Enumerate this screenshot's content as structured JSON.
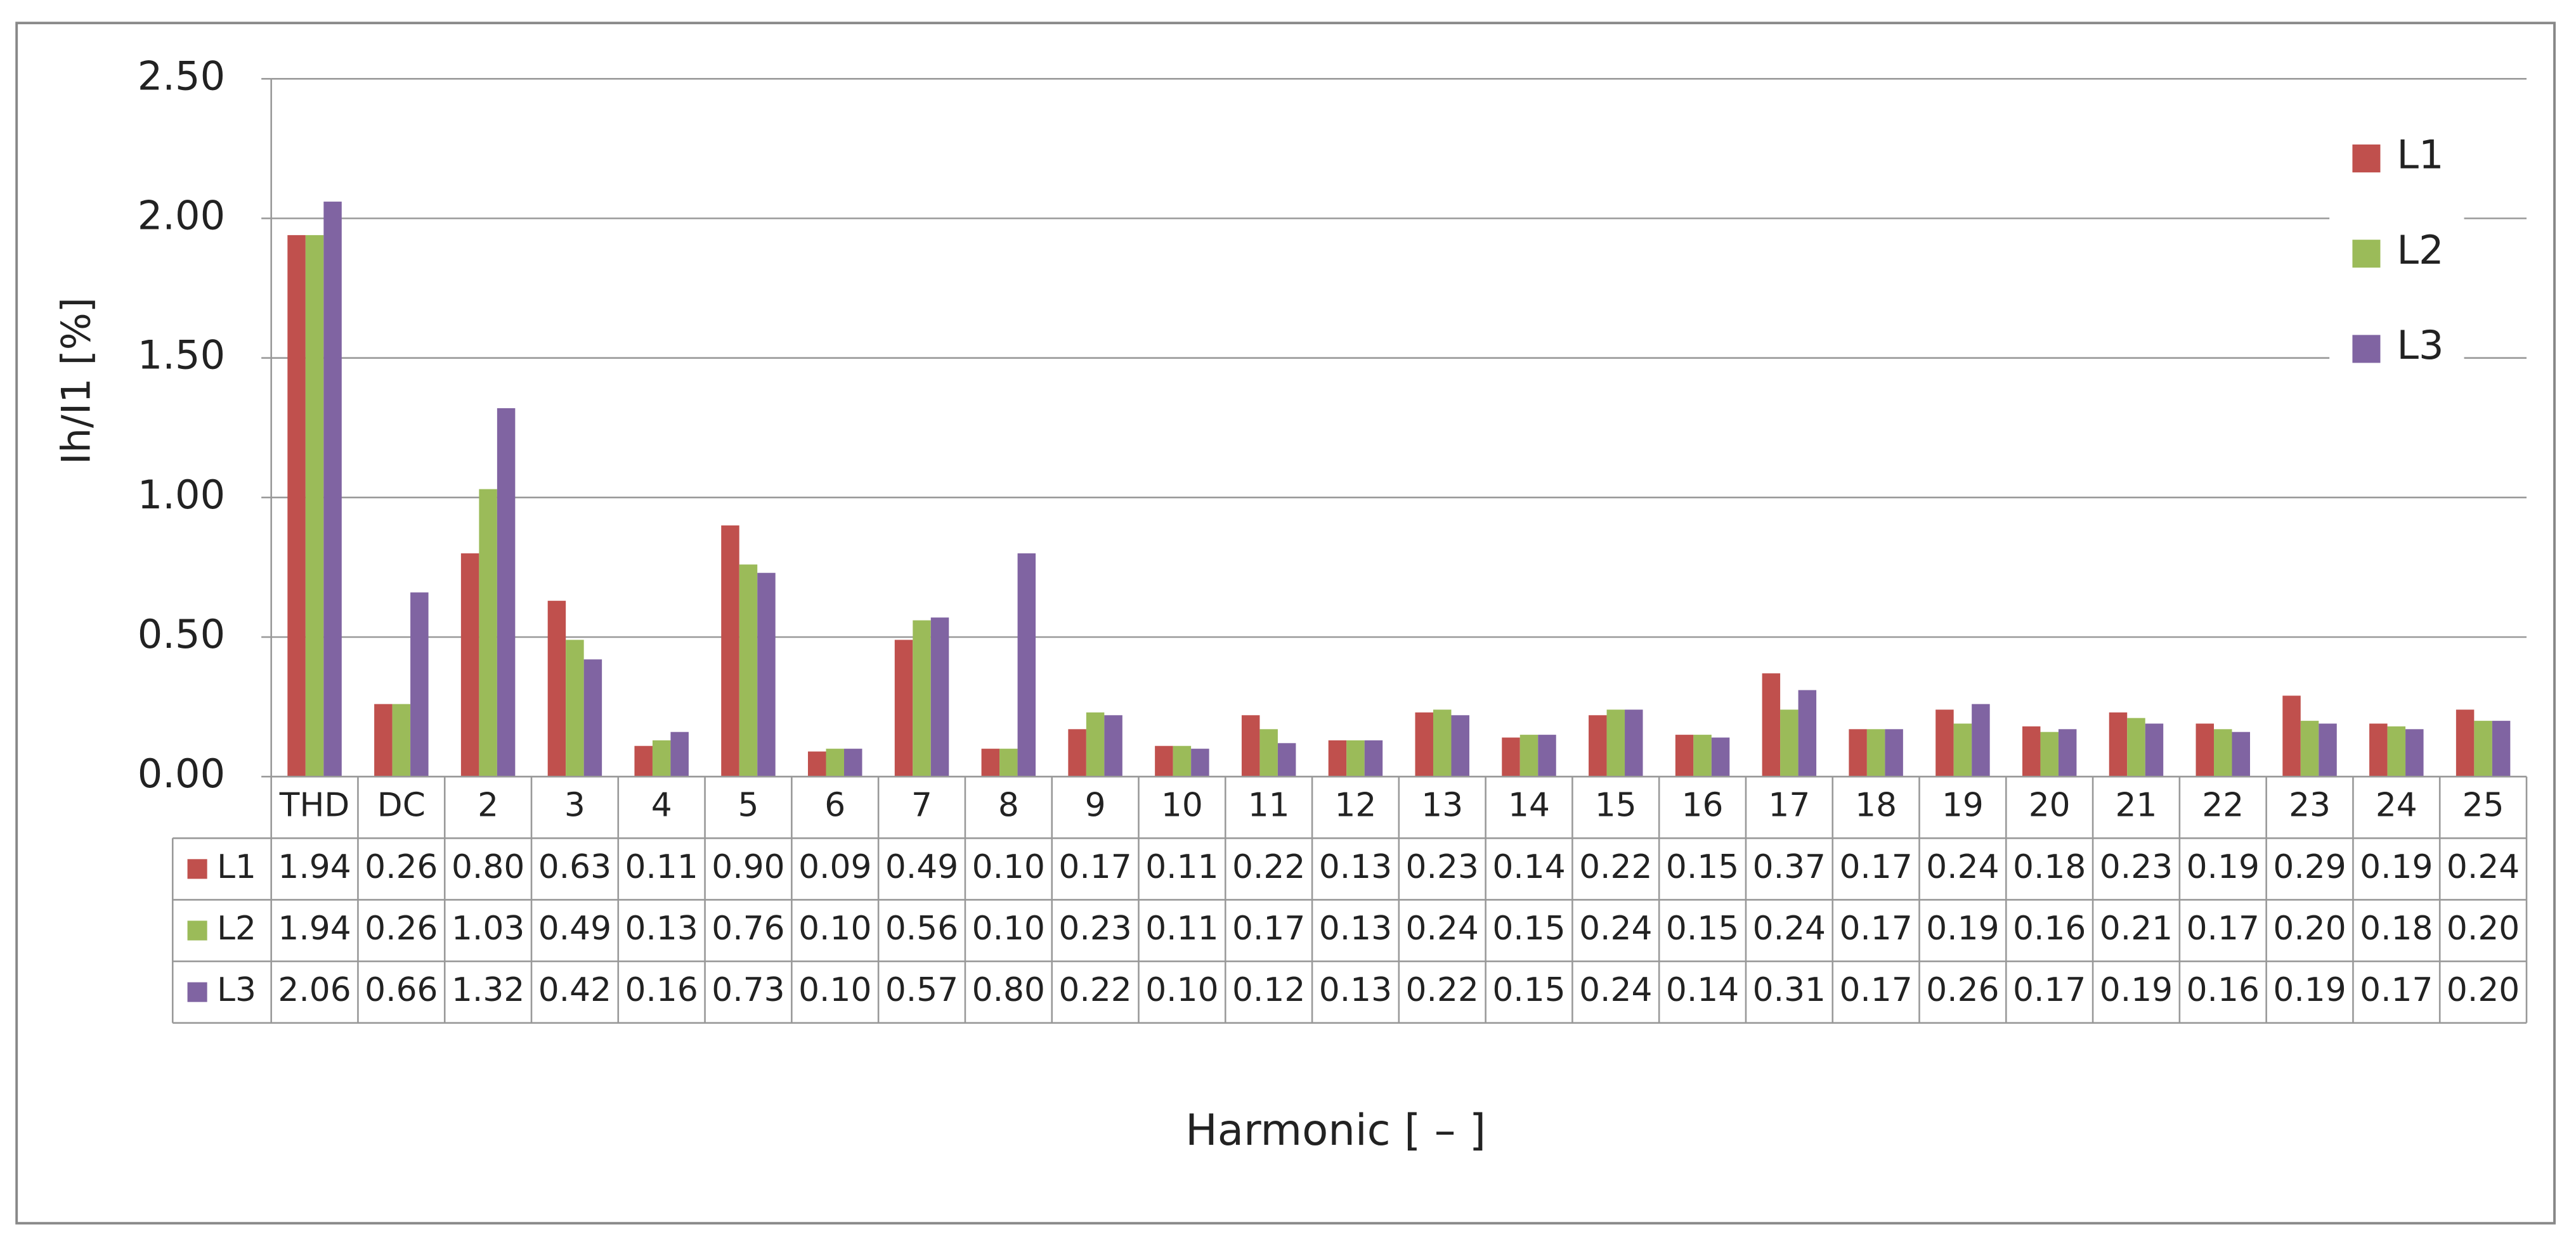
{
  "chart_data": {
    "type": "bar",
    "y_label": "Ih/I1  [%]",
    "x_label": "Harmonic [ – ]",
    "categories": [
      "THD",
      "DC",
      "2",
      "3",
      "4",
      "5",
      "6",
      "7",
      "8",
      "9",
      "10",
      "11",
      "12",
      "13",
      "14",
      "15",
      "16",
      "17",
      "18",
      "19",
      "20",
      "21",
      "22",
      "23",
      "24",
      "25"
    ],
    "series": [
      {
        "name": "L1",
        "color": "#c0504d",
        "values": [
          1.94,
          0.26,
          0.8,
          0.63,
          0.11,
          0.9,
          0.09,
          0.49,
          0.1,
          0.17,
          0.11,
          0.22,
          0.13,
          0.23,
          0.14,
          0.22,
          0.15,
          0.37,
          0.17,
          0.24,
          0.18,
          0.23,
          0.19,
          0.29,
          0.19,
          0.24
        ],
        "value_labels": [
          "1.94",
          "0.26",
          "0.80",
          "0.63",
          "0.11",
          "0.90",
          "0.09",
          "0.49",
          "0.10",
          "0.17",
          "0.11",
          "0.22",
          "0.13",
          "0.23",
          "0.14",
          "0.22",
          "0.15",
          "0.37",
          "0.17",
          "0.24",
          "0.18",
          "0.23",
          "0.19",
          "0.29",
          "0.19",
          "0.24"
        ]
      },
      {
        "name": "L2",
        "color": "#9bbb59",
        "values": [
          1.94,
          0.26,
          1.03,
          0.49,
          0.13,
          0.76,
          0.1,
          0.56,
          0.1,
          0.23,
          0.11,
          0.17,
          0.13,
          0.24,
          0.15,
          0.24,
          0.15,
          0.24,
          0.17,
          0.19,
          0.16,
          0.21,
          0.17,
          0.2,
          0.18,
          0.2
        ],
        "value_labels": [
          "1.94",
          "0.26",
          "1.03",
          "0.49",
          "0.13",
          "0.76",
          "0.10",
          "0.56",
          "0.10",
          "0.23",
          "0.11",
          "0.17",
          "0.13",
          "0.24",
          "0.15",
          "0.24",
          "0.15",
          "0.24",
          "0.17",
          "0.19",
          "0.16",
          "0.21",
          "0.17",
          "0.20",
          "0.18",
          "0.20"
        ]
      },
      {
        "name": "L3",
        "color": "#8064a2",
        "values": [
          2.06,
          0.66,
          1.32,
          0.42,
          0.16,
          0.73,
          0.1,
          0.57,
          0.8,
          0.22,
          0.1,
          0.12,
          0.13,
          0.22,
          0.15,
          0.24,
          0.14,
          0.31,
          0.17,
          0.26,
          0.17,
          0.19,
          0.16,
          0.19,
          0.17,
          0.2
        ],
        "value_labels": [
          "2.06",
          "0.66",
          "1.32",
          "0.42",
          "0.16",
          "0.73",
          "0.10",
          "0.57",
          "0.80",
          "0.22",
          "0.10",
          "0.12",
          "0.13",
          "0.22",
          "0.15",
          "0.24",
          "0.14",
          "0.31",
          "0.17",
          "0.26",
          "0.17",
          "0.19",
          "0.16",
          "0.19",
          "0.17",
          "0.20"
        ]
      }
    ],
    "ylim": [
      0,
      2.5
    ],
    "yticks": [
      {
        "value": 0,
        "label": "0.00"
      },
      {
        "value": 0.5,
        "label": "0.50"
      },
      {
        "value": 1,
        "label": "1.00"
      },
      {
        "value": 1.5,
        "label": "1.50"
      },
      {
        "value": 2,
        "label": "2.00"
      },
      {
        "value": 2.5,
        "label": "2.50"
      }
    ],
    "grid": true,
    "legend": "top-right"
  }
}
